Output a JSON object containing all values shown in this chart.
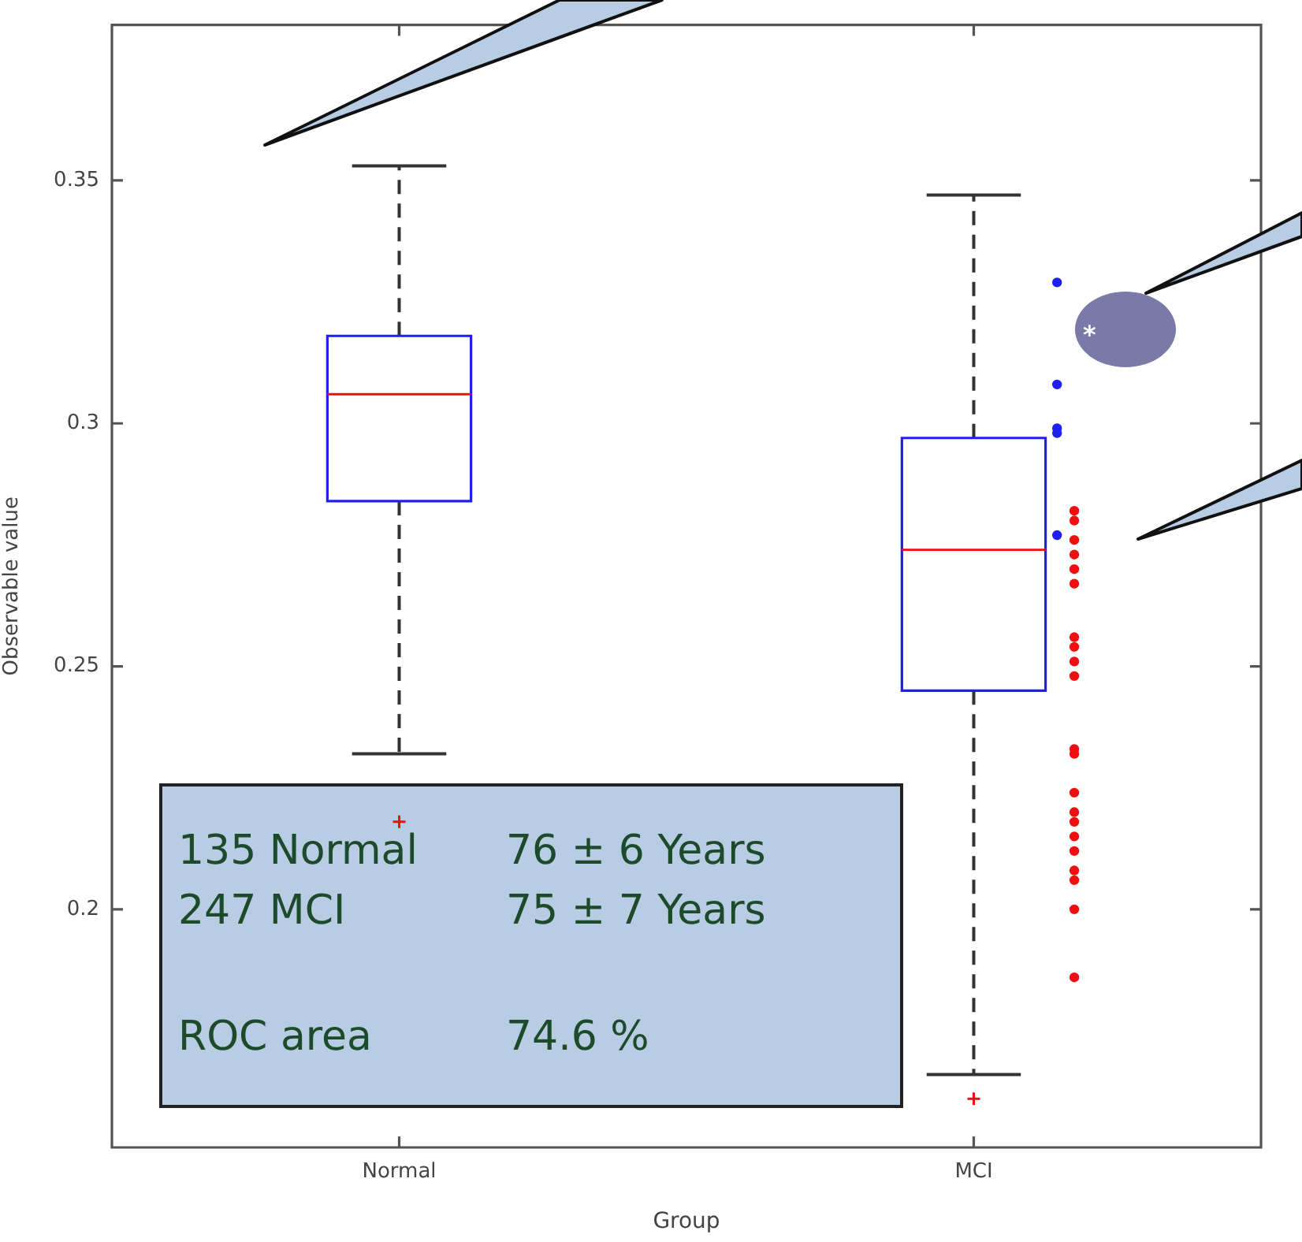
{
  "chart_data": {
    "type": "box",
    "xlabel": "Group",
    "ylabel": "Observable value",
    "categories": [
      "Normal",
      "MCI"
    ],
    "series": [
      {
        "type": "box",
        "color": "#2020ee",
        "boxes": [
          {
            "low": 0.232,
            "q1": 0.284,
            "median": 0.306,
            "q3": 0.318,
            "high": 0.353,
            "outliers": [
              0.218
            ]
          },
          {
            "low": 0.166,
            "q1": 0.245,
            "median": 0.274,
            "q3": 0.297,
            "high": 0.347,
            "outliers": [
              0.161
            ]
          }
        ]
      },
      {
        "type": "scatter",
        "color": "#2020ee",
        "marker": "circle",
        "x": [
          "MCI",
          "MCI",
          "MCI",
          "MCI",
          "MCI"
        ],
        "values": [
          0.329,
          0.308,
          0.299,
          0.298,
          0.277
        ]
      },
      {
        "type": "scatter",
        "color": "#ee1010",
        "marker": "circle",
        "x": [
          "MCI",
          "MCI",
          "MCI",
          "MCI",
          "MCI",
          "MCI",
          "MCI",
          "MCI",
          "MCI",
          "MCI",
          "MCI",
          "MCI",
          "MCI",
          "MCI",
          "MCI",
          "MCI",
          "MCI",
          "MCI",
          "MCI",
          "MCI",
          "MCI"
        ],
        "values": [
          0.282,
          0.28,
          0.276,
          0.273,
          0.27,
          0.267,
          0.256,
          0.254,
          0.251,
          0.248,
          0.233,
          0.232,
          0.224,
          0.22,
          0.218,
          0.215,
          0.212,
          0.208,
          0.206,
          0.2,
          0.186
        ]
      }
    ],
    "ylim": [
      0.151,
      0.382
    ],
    "yticks": [
      0.2,
      0.25,
      0.3,
      0.35
    ],
    "grid": false,
    "legend": false,
    "annotations": [
      "*",
      "135 Normal",
      "76 ± 6 Years",
      "247 MCI",
      "75 ± 7 Years",
      "ROC area",
      "74.6 %"
    ]
  }
}
